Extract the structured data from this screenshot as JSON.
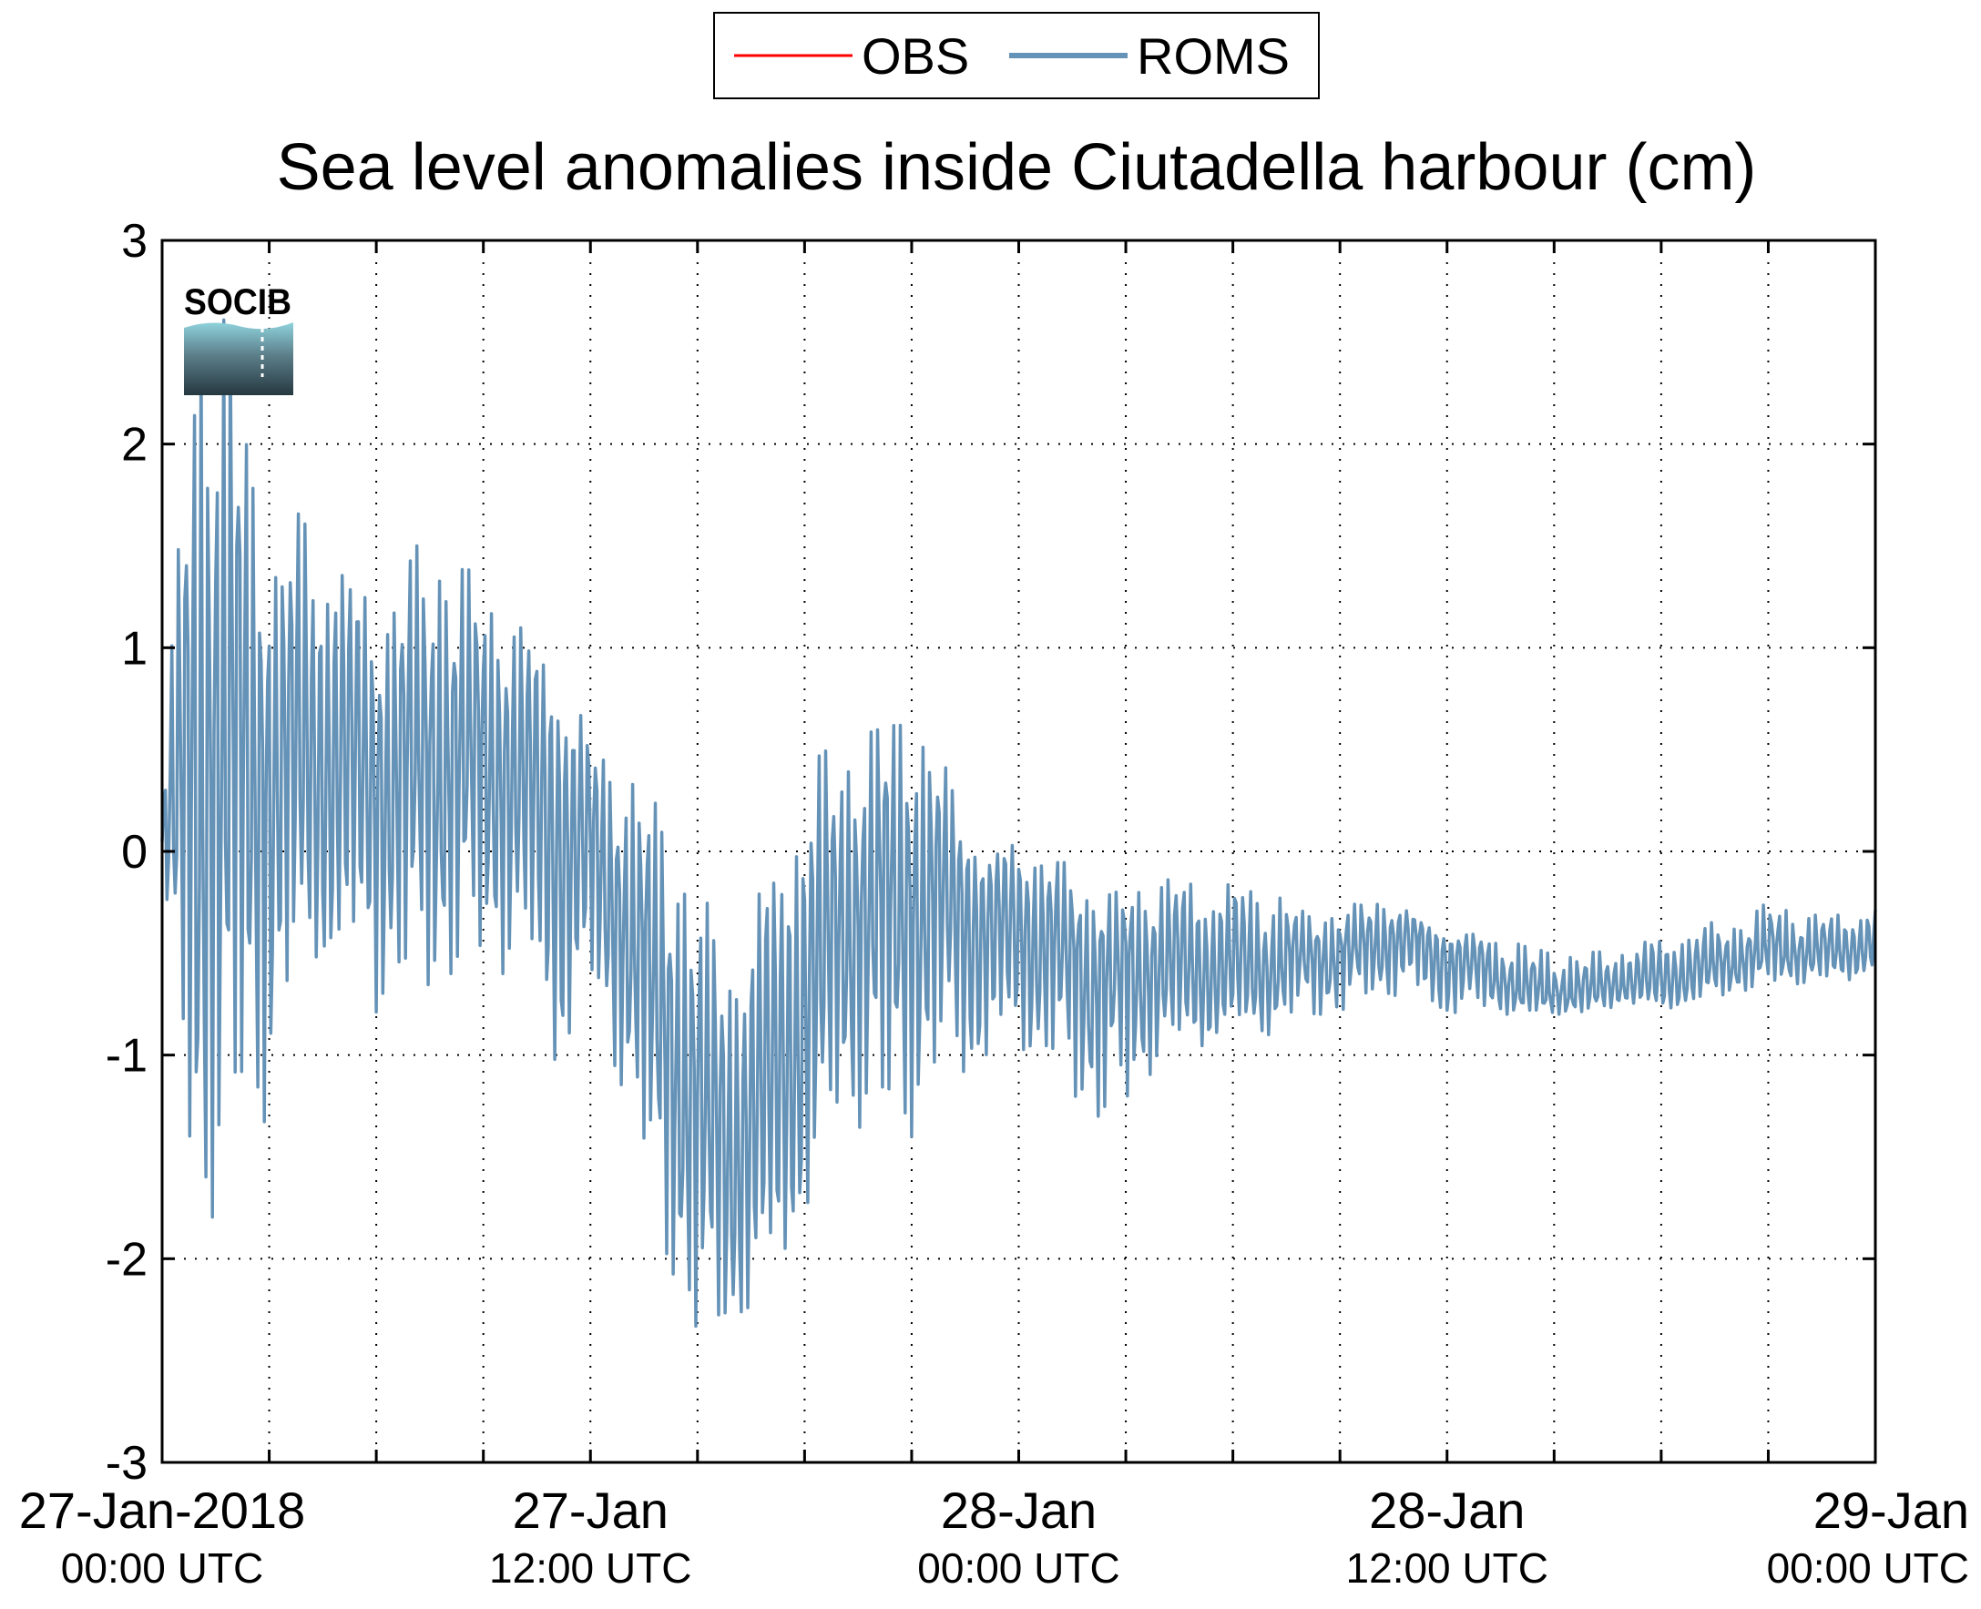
{
  "chart_data": {
    "type": "line",
    "title": "Sea level anomalies inside Ciutadella harbour (cm)",
    "xlabel": "",
    "ylabel": "",
    "ylim": [
      -3,
      3
    ],
    "yticks": [
      "3",
      "2",
      "1",
      "0",
      "-1",
      "-2",
      "-3"
    ],
    "xlim": [
      "2018-01-27T00:00Z",
      "2018-01-29T00:00Z"
    ],
    "xticks": [
      {
        "time": "2018-01-27T00:00Z",
        "date": "27-Jan-2018",
        "time_label": "00:00 UTC"
      },
      {
        "time": "2018-01-27T12:00Z",
        "date": "27-Jan",
        "time_label": "12:00 UTC"
      },
      {
        "time": "2018-01-28T00:00Z",
        "date": "28-Jan",
        "time_label": "00:00 UTC"
      },
      {
        "time": "2018-01-28T12:00Z",
        "date": "28-Jan",
        "time_label": "12:00 UTC"
      },
      {
        "time": "2018-01-29T00:00Z",
        "date": "29-Jan",
        "time_label": "00:00 UTC"
      }
    ],
    "grid": true,
    "grid_style": "dotted",
    "legend_position": "top-center",
    "series": [
      {
        "name": "OBS",
        "color": "#ff0000",
        "x": [],
        "values": []
      },
      {
        "name": "ROMS",
        "color": "#6592b7",
        "x": [
          "2018-01-27T00:00Z",
          "2018-01-27T01:00Z",
          "2018-01-27T02:00Z",
          "2018-01-27T03:00Z",
          "2018-01-27T04:00Z",
          "2018-01-27T05:00Z",
          "2018-01-27T06:00Z",
          "2018-01-27T07:00Z",
          "2018-01-27T08:00Z",
          "2018-01-27T09:00Z",
          "2018-01-27T10:00Z",
          "2018-01-27T11:00Z",
          "2018-01-27T12:00Z",
          "2018-01-27T13:00Z",
          "2018-01-27T14:00Z",
          "2018-01-27T15:00Z",
          "2018-01-27T16:00Z",
          "2018-01-27T17:00Z",
          "2018-01-27T18:00Z",
          "2018-01-27T19:00Z",
          "2018-01-27T20:00Z",
          "2018-01-27T21:00Z",
          "2018-01-27T22:00Z",
          "2018-01-27T23:00Z",
          "2018-01-28T00:00Z",
          "2018-01-28T01:00Z",
          "2018-01-28T02:00Z",
          "2018-01-28T03:00Z",
          "2018-01-28T04:00Z",
          "2018-01-28T05:00Z",
          "2018-01-28T06:00Z",
          "2018-01-28T07:00Z",
          "2018-01-28T08:00Z",
          "2018-01-28T09:00Z",
          "2018-01-28T10:00Z",
          "2018-01-28T11:00Z",
          "2018-01-28T12:00Z",
          "2018-01-28T13:00Z",
          "2018-01-28T14:00Z",
          "2018-01-28T15:00Z",
          "2018-01-28T16:00Z",
          "2018-01-28T17:00Z",
          "2018-01-28T18:00Z",
          "2018-01-28T19:00Z",
          "2018-01-28T20:00Z",
          "2018-01-28T21:00Z",
          "2018-01-28T22:00Z",
          "2018-01-28T23:00Z",
          "2018-01-29T00:00Z"
        ],
        "mean": [
          0.0,
          0.55,
          0.45,
          0.55,
          0.4,
          0.45,
          0.4,
          0.4,
          0.45,
          0.5,
          0.4,
          0.2,
          0.05,
          -0.35,
          -0.8,
          -1.3,
          -1.5,
          -1.2,
          -0.8,
          -0.35,
          -0.2,
          -0.2,
          -0.2,
          -0.3,
          -0.35,
          -0.45,
          -0.55,
          -0.55,
          -0.55,
          -0.6,
          -0.6,
          -0.6,
          -0.5,
          -0.5,
          -0.45,
          -0.4,
          -0.5,
          -0.55,
          -0.7,
          -0.7,
          -0.7,
          -0.65,
          -0.65,
          -0.6,
          -0.55,
          -0.5,
          -0.5,
          -0.5,
          -0.45
        ],
        "max": [
          0.3,
          2.9,
          2.5,
          1.4,
          1.8,
          1.6,
          1.2,
          1.5,
          1.5,
          1.3,
          1.2,
          1.0,
          0.6,
          0.4,
          0.2,
          -0.2,
          -0.4,
          0.0,
          0.5,
          0.5,
          0.6,
          0.7,
          0.4,
          0.0,
          0.1,
          0.0,
          -0.2,
          -0.2,
          -0.1,
          -0.1,
          -0.1,
          -0.15,
          -0.3,
          -0.3,
          -0.2,
          -0.3,
          -0.4,
          -0.4,
          -0.45,
          -0.5,
          -0.5,
          -0.45,
          -0.4,
          -0.35,
          -0.35,
          -0.25,
          -0.3,
          -0.3,
          -0.25
        ],
        "min": [
          -0.1,
          -2.0,
          -1.5,
          -1.3,
          -0.6,
          -0.7,
          -0.8,
          -0.7,
          -0.6,
          -0.6,
          -0.6,
          -1.2,
          -0.8,
          -1.2,
          -1.9,
          -2.45,
          -2.4,
          -2.3,
          -1.9,
          -1.3,
          -1.4,
          -1.4,
          -1.1,
          -1.2,
          -1.0,
          -1.1,
          -1.3,
          -1.3,
          -1.0,
          -1.0,
          -0.9,
          -0.9,
          -0.8,
          -0.8,
          -0.7,
          -0.75,
          -0.85,
          -0.8,
          -0.8,
          -0.8,
          -0.8,
          -0.75,
          -0.8,
          -0.75,
          -0.7,
          -0.65,
          -0.65,
          -0.65,
          -0.6
        ]
      }
    ]
  },
  "legend": {
    "items": [
      {
        "label": "OBS",
        "color": "#ff0000"
      },
      {
        "label": "ROMS",
        "color": "#6592b7"
      }
    ]
  },
  "logo": {
    "text": "SOCIB",
    "color": "#5bb8c6"
  }
}
